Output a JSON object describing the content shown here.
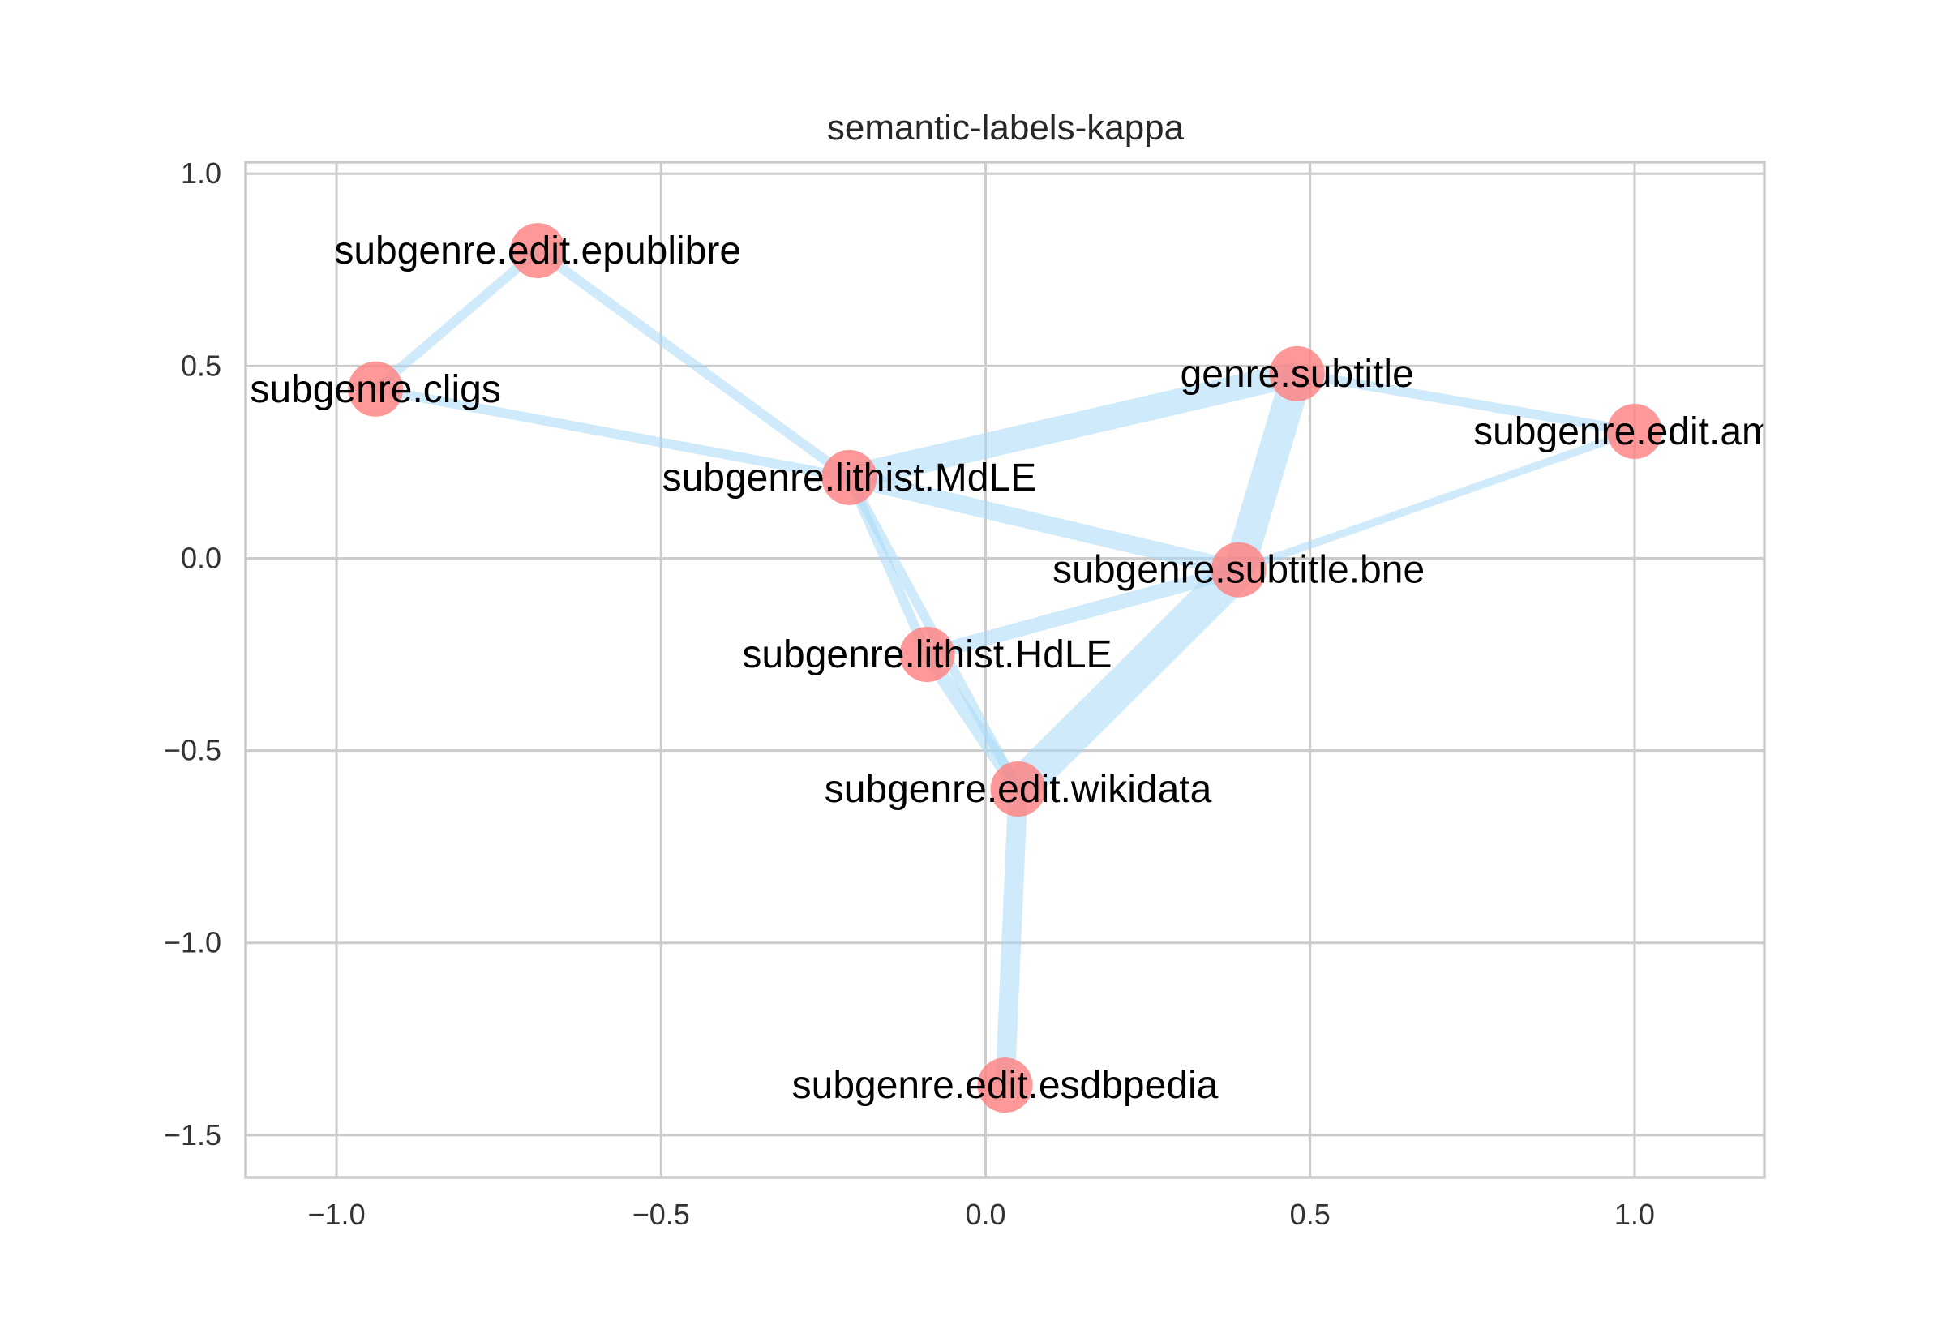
{
  "chart_data": {
    "type": "network",
    "title": "semantic-labels-kappa",
    "xlim": [
      -1.14,
      1.2
    ],
    "ylim": [
      -1.61,
      1.03
    ],
    "xticks": [
      -1.0,
      -0.5,
      0.0,
      0.5,
      1.0
    ],
    "xtick_labels": [
      "−1.0",
      "−0.5",
      "0.0",
      "0.5",
      "1.0"
    ],
    "yticks": [
      1.0,
      0.5,
      0.0,
      -0.5,
      -1.0,
      -1.5
    ],
    "ytick_labels": [
      "1.0",
      "0.5",
      "0.0",
      "−0.5",
      "−1.0",
      "−1.5"
    ],
    "grid": true,
    "node_color": "#ff7f7f",
    "edge_color": "#a8d8f5",
    "nodes": [
      {
        "id": "epublibre",
        "label": "subgenre.edit.epublibre",
        "x": -0.69,
        "y": 0.8
      },
      {
        "id": "cligs",
        "label": "subgenre.cligs",
        "x": -0.94,
        "y": 0.44
      },
      {
        "id": "genre_subtitle",
        "label": "genre.subtitle",
        "x": 0.48,
        "y": 0.48
      },
      {
        "id": "ama",
        "label": "subgenre.edit.ama",
        "x": 1.0,
        "y": 0.33
      },
      {
        "id": "mdle",
        "label": "subgenre.lithist.MdLE",
        "x": -0.21,
        "y": 0.21
      },
      {
        "id": "bne",
        "label": "subgenre.subtitle.bne",
        "x": 0.39,
        "y": -0.03
      },
      {
        "id": "hdle",
        "label": "subgenre.lithist.HdLE",
        "x": -0.09,
        "y": -0.25
      },
      {
        "id": "wikidata",
        "label": "subgenre.edit.wikidata",
        "x": 0.05,
        "y": -0.6
      },
      {
        "id": "esdbpedia",
        "label": "subgenre.edit.esdbpedia",
        "x": 0.03,
        "y": -1.37
      }
    ],
    "edges": [
      {
        "source": "epublibre",
        "target": "cligs",
        "weight": 1.0
      },
      {
        "source": "epublibre",
        "target": "mdle",
        "weight": 1.0
      },
      {
        "source": "cligs",
        "target": "mdle",
        "weight": 1.0
      },
      {
        "source": "mdle",
        "target": "genre_subtitle",
        "weight": 2.6
      },
      {
        "source": "mdle",
        "target": "bne",
        "weight": 1.8
      },
      {
        "source": "mdle",
        "target": "hdle",
        "weight": 1.0
      },
      {
        "source": "mdle",
        "target": "wikidata",
        "weight": 1.0
      },
      {
        "source": "genre_subtitle",
        "target": "ama",
        "weight": 1.0
      },
      {
        "source": "genre_subtitle",
        "target": "bne",
        "weight": 3.2
      },
      {
        "source": "ama",
        "target": "bne",
        "weight": 0.8
      },
      {
        "source": "bne",
        "target": "hdle",
        "weight": 1.5
      },
      {
        "source": "bne",
        "target": "wikidata",
        "weight": 3.8
      },
      {
        "source": "hdle",
        "target": "wikidata",
        "weight": 1.5
      },
      {
        "source": "wikidata",
        "target": "esdbpedia",
        "weight": 2.0
      }
    ]
  }
}
